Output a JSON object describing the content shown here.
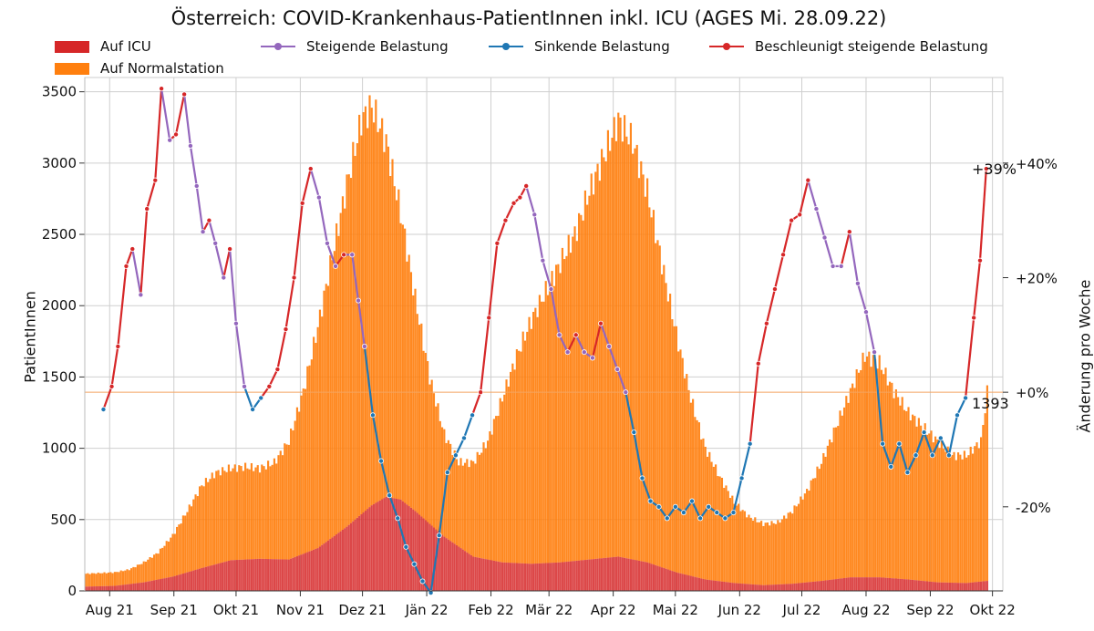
{
  "chart_data": {
    "type": "bar+line",
    "title": "Österreich: COVID-Krankenhaus-PatientInnen inkl. ICU (AGES Mi. 28.09.22)",
    "ylabel": "PatientInnen",
    "y2label": "Änderung pro Woche",
    "ylim": [
      0,
      3600
    ],
    "yticks": [
      "0",
      "500",
      "1000",
      "1500",
      "2000",
      "2500",
      "3000",
      "3500"
    ],
    "y2ticks": [
      "-20%",
      "+0%",
      "+20%",
      "+40%"
    ],
    "y2_values": [
      -20,
      0,
      20,
      40
    ],
    "y2lim": [
      -39,
      56
    ],
    "xticks": [
      "Aug 21",
      "Sep 21",
      "Okt 21",
      "Nov 21",
      "Dez 21",
      "Jän 22",
      "Feb 22",
      "Mär 22",
      "Apr 22",
      "Mai 22",
      "Jun 22",
      "Jul 22",
      "Aug 22",
      "Sep 22",
      "Okt 22"
    ],
    "bar_series": [
      {
        "name": "Auf ICU",
        "color": "#d62728"
      },
      {
        "name": "Auf Normalstation",
        "color": "#ff7f0e"
      }
    ],
    "line_series": [
      {
        "name": "Steigende Belastung",
        "color": "#9467bd"
      },
      {
        "name": "Sinkende Belastung",
        "color": "#1f77b4"
      },
      {
        "name": "Beschleunigt steigende Belastung",
        "color": "#d62728"
      }
    ],
    "total_points": [
      [
        "2021-07-20",
        120
      ],
      [
        "2021-07-27",
        125
      ],
      [
        "2021-08-03",
        130
      ],
      [
        "2021-08-10",
        150
      ],
      [
        "2021-08-17",
        200
      ],
      [
        "2021-08-24",
        270
      ],
      [
        "2021-08-31",
        390
      ],
      [
        "2021-09-07",
        560
      ],
      [
        "2021-09-14",
        740
      ],
      [
        "2021-09-21",
        830
      ],
      [
        "2021-09-28",
        860
      ],
      [
        "2021-10-05",
        870
      ],
      [
        "2021-10-12",
        860
      ],
      [
        "2021-10-19",
        900
      ],
      [
        "2021-10-26",
        1050
      ],
      [
        "2021-11-02",
        1400
      ],
      [
        "2021-11-09",
        1850
      ],
      [
        "2021-11-16",
        2350
      ],
      [
        "2021-11-23",
        2850
      ],
      [
        "2021-11-30",
        3300
      ],
      [
        "2021-12-05",
        3400
      ],
      [
        "2021-12-12",
        3150
      ],
      [
        "2021-12-19",
        2650
      ],
      [
        "2021-12-26",
        2050
      ],
      [
        "2022-01-02",
        1500
      ],
      [
        "2022-01-09",
        1100
      ],
      [
        "2022-01-16",
        900
      ],
      [
        "2022-01-23",
        900
      ],
      [
        "2022-01-30",
        1050
      ],
      [
        "2022-02-06",
        1350
      ],
      [
        "2022-02-13",
        1650
      ],
      [
        "2022-02-20",
        1900
      ],
      [
        "2022-02-27",
        2100
      ],
      [
        "2022-03-06",
        2300
      ],
      [
        "2022-03-13",
        2500
      ],
      [
        "2022-03-20",
        2800
      ],
      [
        "2022-03-27",
        3050
      ],
      [
        "2022-04-03",
        3300
      ],
      [
        "2022-04-10",
        3150
      ],
      [
        "2022-04-17",
        2800
      ],
      [
        "2022-04-24",
        2300
      ],
      [
        "2022-05-01",
        1800
      ],
      [
        "2022-05-08",
        1350
      ],
      [
        "2022-05-15",
        1000
      ],
      [
        "2022-05-22",
        800
      ],
      [
        "2022-05-29",
        620
      ],
      [
        "2022-06-05",
        520
      ],
      [
        "2022-06-12",
        470
      ],
      [
        "2022-06-19",
        480
      ],
      [
        "2022-06-26",
        560
      ],
      [
        "2022-07-03",
        700
      ],
      [
        "2022-07-10",
        900
      ],
      [
        "2022-07-17",
        1150
      ],
      [
        "2022-07-24",
        1400
      ],
      [
        "2022-07-31",
        1650
      ],
      [
        "2022-08-07",
        1600
      ],
      [
        "2022-08-14",
        1400
      ],
      [
        "2022-08-21",
        1250
      ],
      [
        "2022-08-28",
        1150
      ],
      [
        "2022-09-04",
        1050
      ],
      [
        "2022-09-11",
        950
      ],
      [
        "2022-09-18",
        950
      ],
      [
        "2022-09-25",
        1050
      ],
      [
        "2022-09-28",
        1393
      ]
    ],
    "icu_points": [
      [
        "2021-07-20",
        30
      ],
      [
        "2021-08-03",
        35
      ],
      [
        "2021-08-17",
        60
      ],
      [
        "2021-08-31",
        100
      ],
      [
        "2021-09-14",
        160
      ],
      [
        "2021-09-28",
        215
      ],
      [
        "2021-10-12",
        225
      ],
      [
        "2021-10-26",
        220
      ],
      [
        "2021-11-09",
        300
      ],
      [
        "2021-11-23",
        450
      ],
      [
        "2021-12-05",
        600
      ],
      [
        "2021-12-12",
        660
      ],
      [
        "2021-12-19",
        640
      ],
      [
        "2021-12-26",
        560
      ],
      [
        "2022-01-09",
        380
      ],
      [
        "2022-01-23",
        240
      ],
      [
        "2022-02-06",
        200
      ],
      [
        "2022-02-20",
        190
      ],
      [
        "2022-03-06",
        200
      ],
      [
        "2022-03-20",
        220
      ],
      [
        "2022-04-03",
        240
      ],
      [
        "2022-04-17",
        200
      ],
      [
        "2022-05-01",
        130
      ],
      [
        "2022-05-15",
        80
      ],
      [
        "2022-05-29",
        55
      ],
      [
        "2022-06-12",
        40
      ],
      [
        "2022-06-26",
        50
      ],
      [
        "2022-07-10",
        70
      ],
      [
        "2022-07-24",
        95
      ],
      [
        "2022-08-07",
        95
      ],
      [
        "2022-08-21",
        80
      ],
      [
        "2022-09-04",
        60
      ],
      [
        "2022-09-18",
        55
      ],
      [
        "2022-09-28",
        70
      ]
    ],
    "change_points": [
      [
        "2021-07-29",
        -3
      ],
      [
        "2021-08-02",
        1
      ],
      [
        "2021-08-05",
        8
      ],
      [
        "2021-08-09",
        22
      ],
      [
        "2021-08-12",
        25
      ],
      [
        "2021-08-16",
        17
      ],
      [
        "2021-08-19",
        32
      ],
      [
        "2021-08-23",
        37
      ],
      [
        "2021-08-26",
        53
      ],
      [
        "2021-08-30",
        44
      ],
      [
        "2021-09-02",
        45
      ],
      [
        "2021-09-06",
        52
      ],
      [
        "2021-09-09",
        43
      ],
      [
        "2021-09-12",
        36
      ],
      [
        "2021-09-15",
        28
      ],
      [
        "2021-09-18",
        30
      ],
      [
        "2021-09-21",
        26
      ],
      [
        "2021-09-25",
        20
      ],
      [
        "2021-09-28",
        25
      ],
      [
        "2021-10-01",
        12
      ],
      [
        "2021-10-05",
        1
      ],
      [
        "2021-10-09",
        -3
      ],
      [
        "2021-10-13",
        -1
      ],
      [
        "2021-10-17",
        1
      ],
      [
        "2021-10-21",
        4
      ],
      [
        "2021-10-25",
        11
      ],
      [
        "2021-10-29",
        20
      ],
      [
        "2021-11-02",
        33
      ],
      [
        "2021-11-06",
        39
      ],
      [
        "2021-11-10",
        34
      ],
      [
        "2021-11-14",
        26
      ],
      [
        "2021-11-18",
        22
      ],
      [
        "2021-11-22",
        24
      ],
      [
        "2021-11-26",
        24
      ],
      [
        "2021-11-29",
        16
      ],
      [
        "2021-12-02",
        8
      ],
      [
        "2021-12-06",
        -4
      ],
      [
        "2021-12-10",
        -12
      ],
      [
        "2021-12-14",
        -18
      ],
      [
        "2021-12-18",
        -22
      ],
      [
        "2021-12-22",
        -27
      ],
      [
        "2021-12-26",
        -30
      ],
      [
        "2021-12-30",
        -33
      ],
      [
        "2022-01-03",
        -35
      ],
      [
        "2022-01-07",
        -25
      ],
      [
        "2022-01-11",
        -14
      ],
      [
        "2022-01-15",
        -11
      ],
      [
        "2022-01-19",
        -8
      ],
      [
        "2022-01-23",
        -4
      ],
      [
        "2022-01-27",
        0
      ],
      [
        "2022-01-31",
        13
      ],
      [
        "2022-02-04",
        26
      ],
      [
        "2022-02-08",
        30
      ],
      [
        "2022-02-12",
        33
      ],
      [
        "2022-02-15",
        34
      ],
      [
        "2022-02-18",
        36
      ],
      [
        "2022-02-22",
        31
      ],
      [
        "2022-02-26",
        23
      ],
      [
        "2022-03-02",
        18
      ],
      [
        "2022-03-06",
        10
      ],
      [
        "2022-03-10",
        7
      ],
      [
        "2022-03-14",
        10
      ],
      [
        "2022-03-18",
        7
      ],
      [
        "2022-03-22",
        6
      ],
      [
        "2022-03-26",
        12
      ],
      [
        "2022-03-30",
        8
      ],
      [
        "2022-04-03",
        4
      ],
      [
        "2022-04-07",
        0
      ],
      [
        "2022-04-11",
        -7
      ],
      [
        "2022-04-15",
        -15
      ],
      [
        "2022-04-19",
        -19
      ],
      [
        "2022-04-23",
        -20
      ],
      [
        "2022-04-27",
        -22
      ],
      [
        "2022-05-01",
        -20
      ],
      [
        "2022-05-05",
        -21
      ],
      [
        "2022-05-09",
        -19
      ],
      [
        "2022-05-13",
        -22
      ],
      [
        "2022-05-17",
        -20
      ],
      [
        "2022-05-21",
        -21
      ],
      [
        "2022-05-25",
        -22
      ],
      [
        "2022-05-29",
        -21
      ],
      [
        "2022-06-02",
        -15
      ],
      [
        "2022-06-06",
        -9
      ],
      [
        "2022-06-10",
        5
      ],
      [
        "2022-06-14",
        12
      ],
      [
        "2022-06-18",
        18
      ],
      [
        "2022-06-22",
        24
      ],
      [
        "2022-06-26",
        30
      ],
      [
        "2022-06-30",
        31
      ],
      [
        "2022-07-04",
        37
      ],
      [
        "2022-07-08",
        32
      ],
      [
        "2022-07-12",
        27
      ],
      [
        "2022-07-16",
        22
      ],
      [
        "2022-07-20",
        22
      ],
      [
        "2022-07-24",
        28
      ],
      [
        "2022-07-28",
        19
      ],
      [
        "2022-08-01",
        14
      ],
      [
        "2022-08-05",
        7
      ],
      [
        "2022-08-09",
        -9
      ],
      [
        "2022-08-13",
        -13
      ],
      [
        "2022-08-17",
        -9
      ],
      [
        "2022-08-21",
        -14
      ],
      [
        "2022-08-25",
        -11
      ],
      [
        "2022-08-29",
        -7
      ],
      [
        "2022-09-02",
        -11
      ],
      [
        "2022-09-06",
        -8
      ],
      [
        "2022-09-10",
        -11
      ],
      [
        "2022-09-14",
        -4
      ],
      [
        "2022-09-18",
        -1
      ],
      [
        "2022-09-22",
        13
      ],
      [
        "2022-09-25",
        23
      ],
      [
        "2022-09-28",
        39
      ]
    ]
  },
  "annotations": {
    "last_total": "1393",
    "last_change": "+39%"
  }
}
